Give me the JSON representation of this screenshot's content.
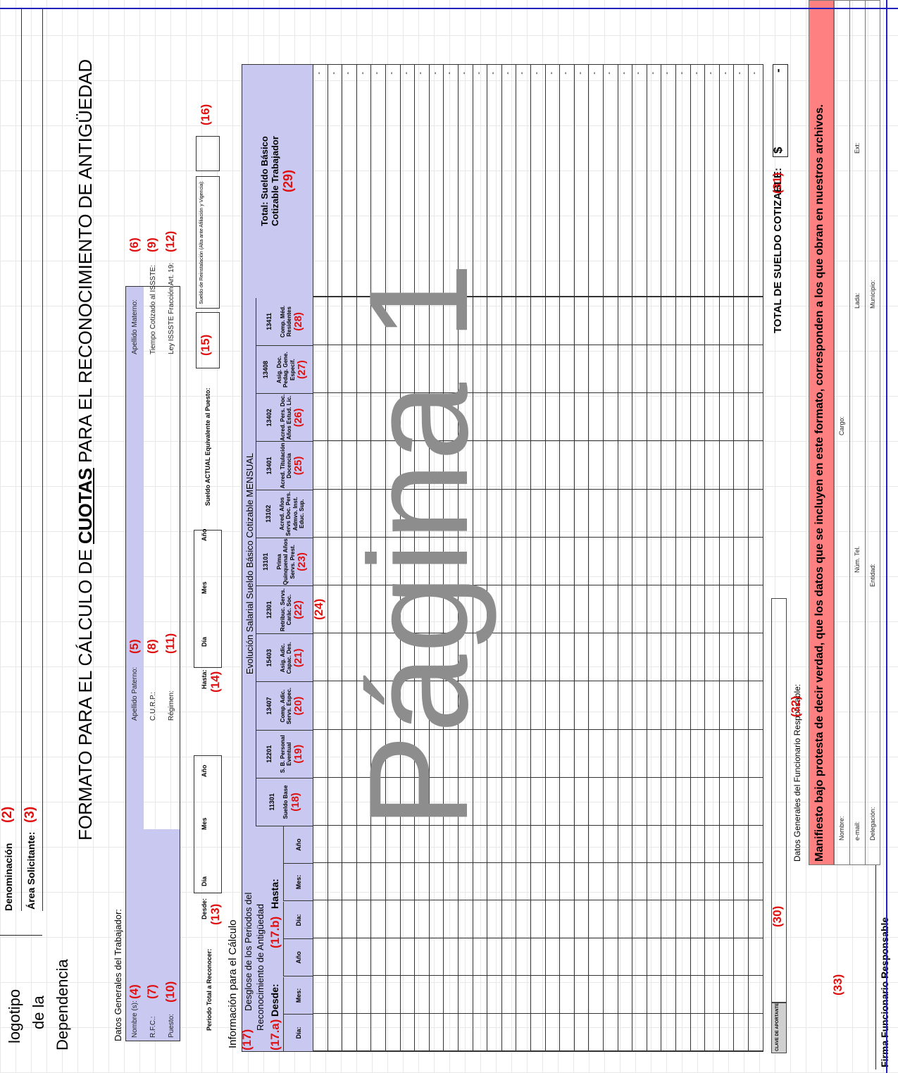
{
  "header": {
    "logo_line1": "logotipo",
    "logo_line2": "de la",
    "logo_line3": "Dependencia",
    "denominacion_label": "Denominación",
    "denominacion_num": "(2)",
    "area_label": "Área Solicitante:",
    "area_num": "(3)",
    "title_part1": "FORMATO PARA EL CÁLCULO DE",
    "title_cuotas": "CUOTAS",
    "title_part2": "PARA EL RECONOCIMIENTO DE ANTIGÜEDAD"
  },
  "worker": {
    "section_title": "Datos Generales del Trabajador:",
    "nombre_label": "Nombre (s):",
    "nombre_num": "(4)",
    "paterno_label": "Apellido Paterno:",
    "paterno_num": "(5)",
    "materno_label": "Apellido Materno:",
    "materno_num": "(6)",
    "rfc_label": "R.F.C.:",
    "rfc_num": "(7)",
    "curp_label": "C.U.R.P.:",
    "curp_num": "(8)",
    "tiempo_label": "Tiempo Cotizado al ISSSTE:",
    "tiempo_num": "(9)",
    "puesto_label": "Puesto:",
    "puesto_num": "(10)",
    "regimen_label": "Régimen:",
    "regimen_num": "(11)",
    "ley_label": "Ley ISSSTE Fracción Art. 19:",
    "ley_num": "(12)"
  },
  "periodo": {
    "total_label": "Periodo Total a Reconocer:",
    "desde_label": "Desde:",
    "desde_num": "(13)",
    "dia": "Día",
    "mes": "Mes",
    "anio": "Año",
    "hasta_label": "Hasta:",
    "hasta_num": "(14)",
    "sueldo_actual_label": "Sueldo ACTUAL Equivalente al Puesto:",
    "sueldo_actual_num": "(15)",
    "reinstalacion_label": "Sueldo de Reinstalación (Alta ante Afiliación y Vigencia):",
    "reinstalacion_num": "(16)"
  },
  "calculo": {
    "info_title": "Información para el Cálculo",
    "num17": "(17)",
    "desglose_line1": "Desglose de los Periodos del",
    "desglose_line2": "Reconocimiento de Antigüedad",
    "num17a": "(17.a)",
    "desde": "Desde:",
    "num17b": "(17.b)",
    "hasta": "Hasta:",
    "dia": "Día:",
    "mes": "Mes:",
    "anio": "Año",
    "evolucion_title": "Evolución Salarial Sueldo Básico Cotizable MENSUAL",
    "num24": "(24)",
    "columns": [
      {
        "code": "11301",
        "name": "Sueldo Base",
        "num": "(18)"
      },
      {
        "code": "12201",
        "name": "S. B. Personal Eventual",
        "num": "(19)"
      },
      {
        "code": "13407",
        "name": "Comp. Adic. Servs. Espec.",
        "num": "(20)"
      },
      {
        "code": "15403",
        "name": "Asig. Adic. Capac. Des.",
        "num": "(21)"
      },
      {
        "code": "12301",
        "name": "Retribuc. Servs. Caràc. Soc.",
        "num": "(22)"
      },
      {
        "code": "13101",
        "name": "Prima Quinquenal Años Servs. Prest.",
        "num": "(23)"
      },
      {
        "code": "13102",
        "name": "Acred. Años Servs Doc. Pers. Admvo. Inst. Educ. Sup.",
        "num": ""
      },
      {
        "code": "13401",
        "name": "Acred. Titulación Docencia",
        "num": "(25)"
      },
      {
        "code": "13402",
        "name": "Acred. Pers. Doc. Años Estud. Lic.",
        "num": "(26)"
      },
      {
        "code": "13408",
        "name": "Asig. Doc. Pedag. Gene. Especif.",
        "num": "(27)"
      },
      {
        "code": "13411",
        "name": "Comp. Méd. Residentes",
        "num": "(28)"
      }
    ],
    "total_line1": "Total: Sueldo Básico",
    "total_line2": "Cotizable Trabajador",
    "total_num": "(29)",
    "dash": "-"
  },
  "footer": {
    "clave_label": "CLAVE DE APORTANTE",
    "clave_num": "(30)",
    "total_label": "TOTAL DE SUELDO COTIZABLE:",
    "total_num": "(31)",
    "currency": "$",
    "total_value": "-",
    "funcionario_title": "Datos Generales del Funcionario Responsable:",
    "funcionario_num": "(32)",
    "manifiesto": "Manifiesto bajo protesta de decir verdad, que los datos que se incluyen en este formato, corresponden a los que obran en nuestros archivos.",
    "nombre": "Nombre:",
    "cargo": "Cargo:",
    "email": "e-mail:",
    "num_tel": "Núm. Tel.",
    "lada": "Lada:",
    "ext": "Ext:",
    "delegacion": "Delegación:",
    "entidad": "Entidad:",
    "municipio": "Municipio:",
    "firma_num": "(33)",
    "firma_label": "Firma Funcionario Responsable"
  },
  "watermark": "Página 1"
}
